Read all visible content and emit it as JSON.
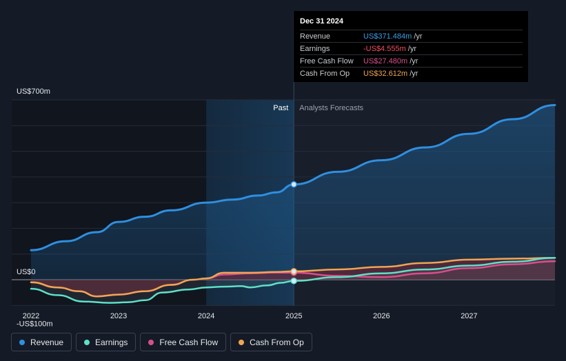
{
  "tooltip": {
    "date": "Dec 31 2024",
    "rows": [
      {
        "label": "Revenue",
        "value": "US$371.484m",
        "unit": "/yr",
        "color": "#3b9ce8"
      },
      {
        "label": "Earnings",
        "value": "-US$4.555m",
        "unit": "/yr",
        "color": "#ef4f5e"
      },
      {
        "label": "Free Cash Flow",
        "value": "US$27.480m",
        "unit": "/yr",
        "color": "#d84f8c"
      },
      {
        "label": "Cash From Op",
        "value": "US$32.612m",
        "unit": "/yr",
        "color": "#f0a553"
      }
    ]
  },
  "legend": [
    {
      "label": "Revenue",
      "color": "#2f8fe0"
    },
    {
      "label": "Earnings",
      "color": "#5ee0c8"
    },
    {
      "label": "Free Cash Flow",
      "color": "#d84f8c"
    },
    {
      "label": "Cash From Op",
      "color": "#f0a553"
    }
  ],
  "chart_data": {
    "type": "line",
    "y_tick_labels": [
      {
        "value": 700,
        "label": "US$700m"
      },
      {
        "value": 0,
        "label": "US$0"
      },
      {
        "value": -100,
        "label": "-US$100m"
      }
    ],
    "x_tick_labels": [
      "2022",
      "2023",
      "2024",
      "2025",
      "2026",
      "2027"
    ],
    "x_tick_values": [
      2022,
      2023,
      2024,
      2025,
      2026,
      2027
    ],
    "ylim": [
      -100,
      700
    ],
    "xlim": [
      2021.78,
      2027.98
    ],
    "past_label": "Past",
    "forecast_label": "Analysts Forecasts",
    "divider_x": 2025.0,
    "past_shade_start": 2024.0,
    "series": [
      {
        "name": "Revenue",
        "color": "#2f8fe0",
        "x": [
          2022.0,
          2022.4,
          2022.75,
          2023.0,
          2023.3,
          2023.6,
          2024.0,
          2024.3,
          2024.6,
          2024.8,
          2025.0,
          2025.5,
          2026.0,
          2026.5,
          2027.0,
          2027.5,
          2027.98
        ],
        "y": [
          115,
          150,
          185,
          225,
          245,
          270,
          300,
          312,
          328,
          340,
          371,
          420,
          465,
          515,
          568,
          625,
          680
        ]
      },
      {
        "name": "Earnings",
        "color": "#5ee0c8",
        "x": [
          2022.0,
          2022.3,
          2022.6,
          2022.9,
          2023.1,
          2023.3,
          2023.5,
          2023.8,
          2024.0,
          2024.2,
          2024.4,
          2024.5,
          2024.7,
          2024.85,
          2025.0,
          2025.5,
          2026.0,
          2026.5,
          2027.0,
          2027.5,
          2027.98
        ],
        "y": [
          -35,
          -60,
          -85,
          -90,
          -88,
          -80,
          -50,
          -38,
          -30,
          -27,
          -25,
          -30,
          -22,
          -12,
          -4.555,
          10,
          25,
          40,
          55,
          70,
          85
        ]
      },
      {
        "name": "Free Cash Flow",
        "color": "#d84f8c",
        "x": [
          2022.0,
          2022.3,
          2022.55,
          2022.75,
          2023.0,
          2023.3,
          2023.6,
          2023.85,
          2024.0,
          2024.2,
          2024.5,
          2024.8,
          2025.0,
          2025.5,
          2026.0,
          2026.5,
          2027.0,
          2027.5,
          2027.98
        ],
        "y": [
          -10,
          -30,
          -45,
          -65,
          -58,
          -45,
          -20,
          0,
          5,
          20,
          25,
          28,
          27.48,
          15,
          10,
          25,
          45,
          60,
          72
        ]
      },
      {
        "name": "Cash From Op",
        "color": "#f0a553",
        "x": [
          2022.0,
          2022.3,
          2022.55,
          2022.75,
          2023.0,
          2023.3,
          2023.6,
          2023.85,
          2024.0,
          2024.2,
          2024.5,
          2024.8,
          2025.0,
          2025.5,
          2026.0,
          2026.5,
          2027.0,
          2027.5,
          2027.98
        ],
        "y": [
          -10,
          -30,
          -45,
          -65,
          -58,
          -45,
          -20,
          0,
          5,
          27,
          27,
          30,
          32.612,
          40,
          50,
          65,
          78,
          82,
          85
        ]
      }
    ]
  }
}
